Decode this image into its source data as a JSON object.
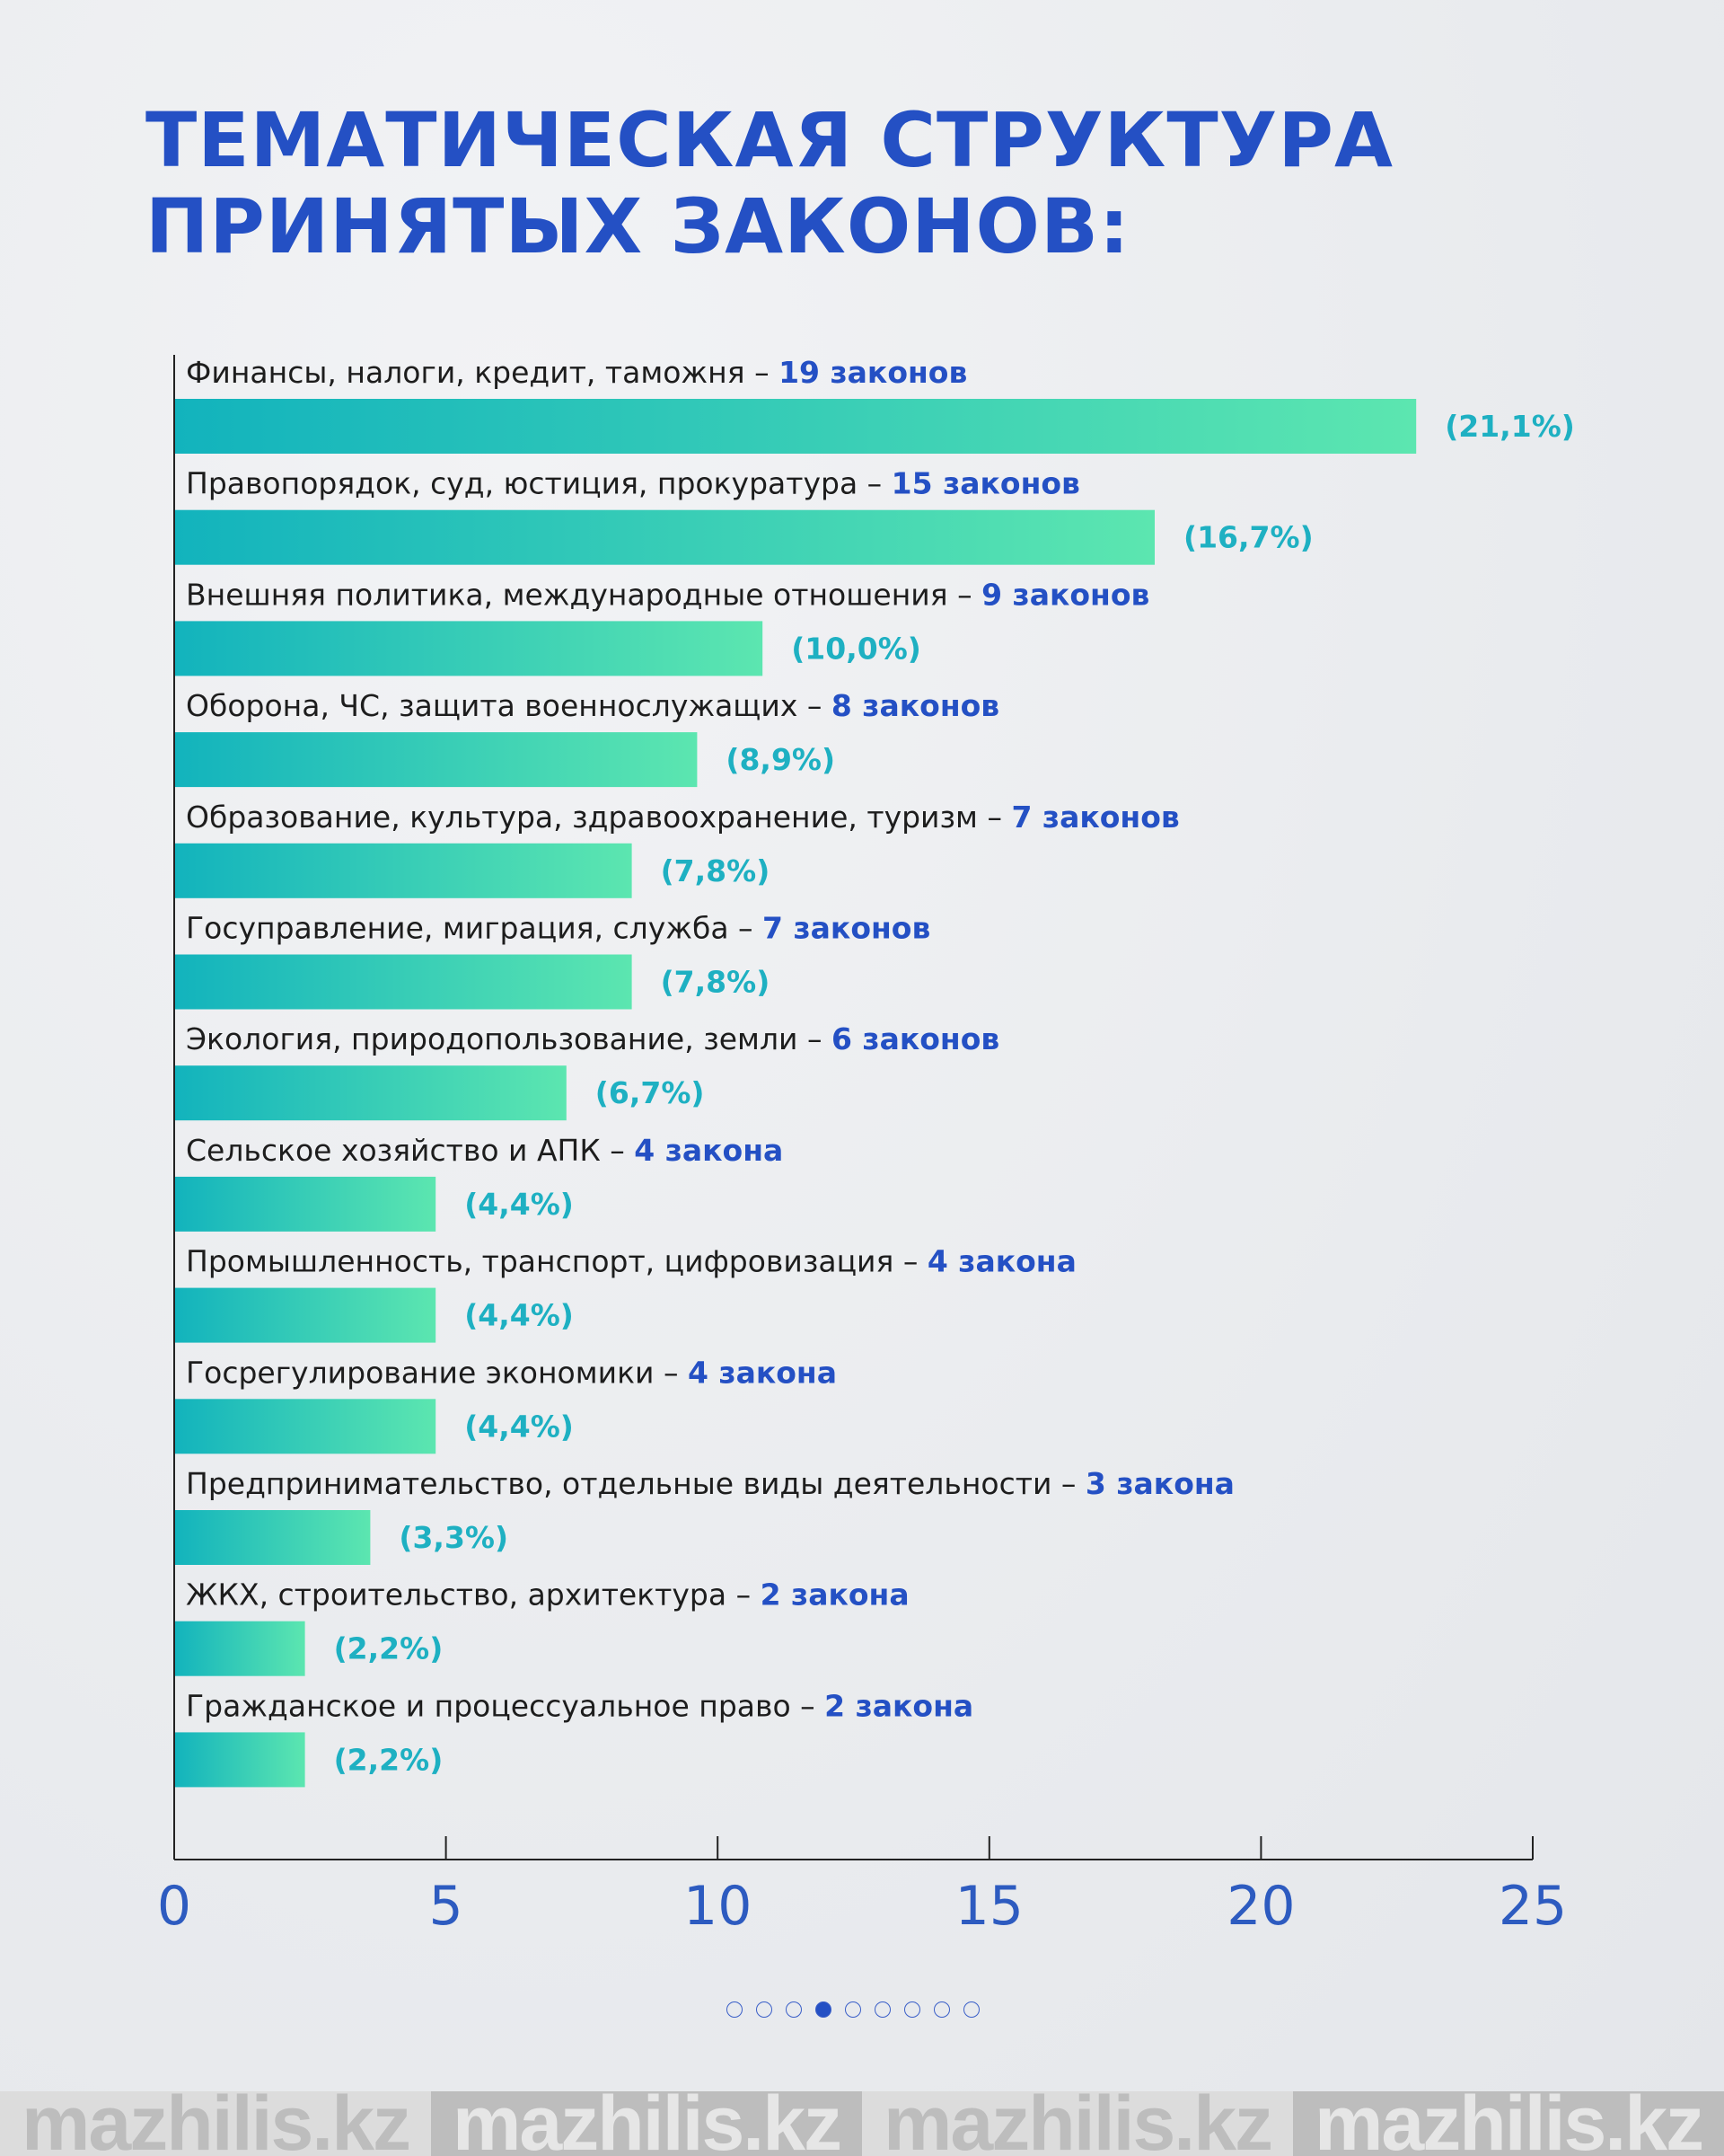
{
  "title": {
    "line1": "ТЕМАТИЧЕСКАЯ СТРУКТУРА",
    "line2": "ПРИНЯТЫХ ЗАКОНОВ:"
  },
  "chart_data": {
    "type": "bar",
    "orientation": "horizontal",
    "title": "Тематическая структура принятых законов",
    "categories": [
      "Финансы, налоги, кредит, таможня",
      "Правопорядок, суд, юстиция, прокуратура",
      "Внешняя политика, международные отношения",
      "Оборона, ЧС, защита военнослужащих",
      "Образование, культура, здравоохранение, туризм",
      "Госуправление, миграция, служба",
      "Экология, природопользование, земли",
      "Сельское хозяйство и АПК",
      "Промышленность, транспорт, цифровизация",
      "Госрегулирование экономики",
      "Предпринимательство, отдельные виды деятельности",
      "ЖКХ, строительство, архитектура",
      "Гражданское и процессуальное право"
    ],
    "values": [
      19,
      15,
      9,
      8,
      7,
      7,
      6,
      4,
      4,
      4,
      3,
      2,
      2
    ],
    "count_labels": [
      "19 законов",
      "15 законов",
      "9 законов",
      "8 законов",
      "7 законов",
      "7 законов",
      "6 законов",
      "4 закона",
      "4 закона",
      "4 закона",
      "3 закона",
      "2 закона",
      "2 закона"
    ],
    "percent_labels": [
      "(21,1%)",
      "(16,7%)",
      "(10,0%)",
      "(8,9%)",
      "(7,8%)",
      "(7,8%)",
      "(6,7%)",
      "(4,4%)",
      "(4,4%)",
      "(4,4%)",
      "(3,3%)",
      "(2,2%)",
      "(2,2%)"
    ],
    "separator": " – ",
    "xlim": [
      0,
      25
    ],
    "xticks": [
      "0",
      "5",
      "10",
      "15",
      "20",
      "25"
    ],
    "grid": false,
    "colors": {
      "bar_start": "#12b3bd",
      "bar_end": "#5ce6b0",
      "count": "#2450c4",
      "percent": "#1eb0c2"
    }
  },
  "pagination": {
    "total": 9,
    "active": 4
  },
  "watermark": [
    "mazhilis.kz",
    "mazhilis.kz",
    "mazhilis.kz",
    "mazhilis.kz"
  ]
}
